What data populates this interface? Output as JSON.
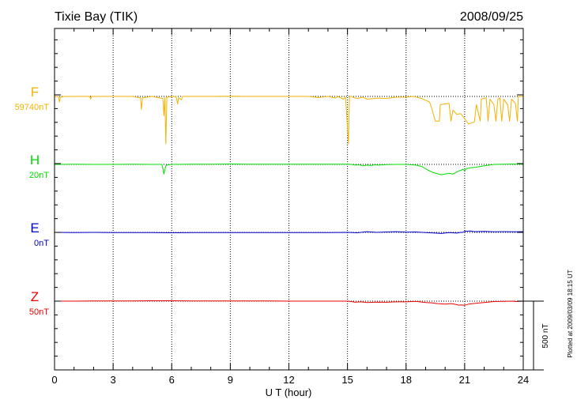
{
  "header": {
    "station": "Tixie Bay (TIK)",
    "date": "2008/09/25"
  },
  "footer": {
    "plotted_note": "Plotted at 2009/03/09 18:15 UT",
    "scale_label": "500 nT"
  },
  "chart_data": {
    "type": "line",
    "title": "Tixie Bay (TIK)",
    "xlabel": "U T (hour)",
    "ylabel": "",
    "xlim": [
      0,
      24
    ],
    "x_ticks": [
      0,
      3,
      6,
      9,
      12,
      15,
      18,
      21,
      24
    ],
    "x_tick_labels": [
      "0",
      "3",
      "6",
      "9",
      "12",
      "15",
      "18",
      "21",
      "24"
    ],
    "scale_bar_nT": 500,
    "grid": true,
    "series": [
      {
        "name": "F",
        "baseline_label": "59740nT",
        "baseline_nT": 59740,
        "color": "#f2b300",
        "points": [
          [
            0,
            0
          ],
          [
            0.2,
            0
          ],
          [
            0.25,
            -40
          ],
          [
            0.3,
            -5
          ],
          [
            0.5,
            0
          ],
          [
            1.0,
            0
          ],
          [
            1.8,
            0
          ],
          [
            1.85,
            -20
          ],
          [
            1.9,
            0
          ],
          [
            3.0,
            0
          ],
          [
            4.0,
            0
          ],
          [
            4.4,
            -10
          ],
          [
            4.45,
            -95
          ],
          [
            4.5,
            -10
          ],
          [
            5.0,
            0
          ],
          [
            5.55,
            -15
          ],
          [
            5.6,
            -140
          ],
          [
            5.65,
            -10
          ],
          [
            5.7,
            -345
          ],
          [
            5.75,
            -5
          ],
          [
            6.2,
            0
          ],
          [
            6.25,
            -15
          ],
          [
            6.3,
            -55
          ],
          [
            6.35,
            -10
          ],
          [
            6.5,
            -25
          ],
          [
            6.55,
            0
          ],
          [
            7.0,
            0
          ],
          [
            8.0,
            0
          ],
          [
            9.0,
            2
          ],
          [
            10.0,
            0
          ],
          [
            11.0,
            0
          ],
          [
            12.0,
            0
          ],
          [
            13.0,
            0
          ],
          [
            13.5,
            -8
          ],
          [
            14.0,
            0
          ],
          [
            14.4,
            -12
          ],
          [
            14.5,
            0
          ],
          [
            14.8,
            -20
          ],
          [
            14.9,
            -5
          ],
          [
            15.05,
            -345
          ],
          [
            15.1,
            0
          ],
          [
            15.2,
            0
          ],
          [
            15.35,
            -10
          ],
          [
            15.5,
            -15
          ],
          [
            15.8,
            -5
          ],
          [
            16.0,
            -20
          ],
          [
            16.3,
            -15
          ],
          [
            16.6,
            -12
          ],
          [
            17.0,
            -15
          ],
          [
            17.5,
            -5
          ],
          [
            18.0,
            -5
          ],
          [
            18.4,
            0
          ],
          [
            18.8,
            -15
          ],
          [
            19.2,
            -40
          ],
          [
            19.3,
            -80
          ],
          [
            19.5,
            -180
          ],
          [
            19.7,
            -180
          ],
          [
            19.75,
            -60
          ],
          [
            20.2,
            -50
          ],
          [
            20.3,
            -180
          ],
          [
            20.4,
            -100
          ],
          [
            20.6,
            -130
          ],
          [
            20.8,
            -125
          ],
          [
            21.2,
            -200
          ],
          [
            21.5,
            -185
          ],
          [
            21.6,
            -60
          ],
          [
            21.8,
            -180
          ],
          [
            21.85,
            -20
          ],
          [
            22.1,
            -10
          ],
          [
            22.2,
            -180
          ],
          [
            22.3,
            -20
          ],
          [
            22.5,
            -60
          ],
          [
            22.6,
            -180
          ],
          [
            22.7,
            -20
          ],
          [
            22.8,
            -10
          ],
          [
            22.9,
            -180
          ],
          [
            23.0,
            -20
          ],
          [
            23.2,
            -60
          ],
          [
            23.3,
            -180
          ],
          [
            23.4,
            -20
          ],
          [
            23.6,
            -50
          ],
          [
            23.7,
            -180
          ],
          [
            23.75,
            0
          ],
          [
            24.0,
            0
          ]
        ]
      },
      {
        "name": "H",
        "baseline_label": "20nT",
        "baseline_nT": 20,
        "color": "#00dd00",
        "points": [
          [
            0,
            0
          ],
          [
            1.0,
            1
          ],
          [
            2.0,
            0
          ],
          [
            3.0,
            0
          ],
          [
            4.0,
            1
          ],
          [
            5.0,
            0
          ],
          [
            5.5,
            0
          ],
          [
            5.6,
            -70
          ],
          [
            5.7,
            -10
          ],
          [
            5.8,
            -3
          ],
          [
            6.0,
            0
          ],
          [
            7.0,
            1
          ],
          [
            8.0,
            2
          ],
          [
            9.0,
            3
          ],
          [
            10.0,
            2
          ],
          [
            11.0,
            2
          ],
          [
            12.0,
            2
          ],
          [
            13.0,
            2
          ],
          [
            14.0,
            2
          ],
          [
            15.0,
            1
          ],
          [
            15.2,
            0
          ],
          [
            15.4,
            -5
          ],
          [
            15.6,
            -3
          ],
          [
            15.8,
            -10
          ],
          [
            16.0,
            -5
          ],
          [
            16.2,
            -8
          ],
          [
            16.4,
            -3
          ],
          [
            16.6,
            -5
          ],
          [
            17.0,
            -2
          ],
          [
            17.5,
            0
          ],
          [
            18.0,
            0
          ],
          [
            18.5,
            -5
          ],
          [
            18.8,
            -15
          ],
          [
            19.1,
            -40
          ],
          [
            19.4,
            -60
          ],
          [
            19.8,
            -75
          ],
          [
            20.2,
            -65
          ],
          [
            20.4,
            -70
          ],
          [
            20.6,
            -55
          ],
          [
            20.75,
            -45
          ],
          [
            20.8,
            -45
          ],
          [
            20.9,
            -35
          ],
          [
            21.0,
            -45
          ],
          [
            21.1,
            -30
          ],
          [
            21.3,
            -25
          ],
          [
            21.6,
            -20
          ],
          [
            22.0,
            -10
          ],
          [
            22.5,
            0
          ],
          [
            23.0,
            2
          ],
          [
            23.5,
            3
          ],
          [
            24.0,
            2
          ]
        ]
      },
      {
        "name": "E",
        "baseline_label": "0nT",
        "baseline_nT": 0,
        "color": "#0000cc",
        "points": [
          [
            0,
            0
          ],
          [
            1.0,
            -1
          ],
          [
            2.0,
            0
          ],
          [
            3.0,
            -1
          ],
          [
            4.0,
            -2
          ],
          [
            5.0,
            -2
          ],
          [
            6.0,
            -3
          ],
          [
            7.0,
            -2
          ],
          [
            8.0,
            -2
          ],
          [
            9.0,
            -2
          ],
          [
            10.0,
            -2
          ],
          [
            11.0,
            -2
          ],
          [
            12.0,
            -2
          ],
          [
            13.0,
            -2
          ],
          [
            14.0,
            -1
          ],
          [
            15.0,
            0
          ],
          [
            15.5,
            -3
          ],
          [
            16.0,
            5
          ],
          [
            16.5,
            0
          ],
          [
            17.0,
            3
          ],
          [
            17.5,
            5
          ],
          [
            18.0,
            2
          ],
          [
            18.5,
            3
          ],
          [
            19.0,
            -2
          ],
          [
            19.5,
            -5
          ],
          [
            19.8,
            -8
          ],
          [
            20.2,
            -2
          ],
          [
            20.6,
            -5
          ],
          [
            20.8,
            0
          ],
          [
            20.9,
            0
          ],
          [
            21.0,
            8
          ],
          [
            21.3,
            10
          ],
          [
            21.5,
            5
          ],
          [
            22.0,
            7
          ],
          [
            22.5,
            4
          ],
          [
            23.0,
            5
          ],
          [
            23.5,
            4
          ],
          [
            24.0,
            5
          ]
        ]
      },
      {
        "name": "Z",
        "baseline_label": "50nT",
        "baseline_nT": 50,
        "color": "#ee0000",
        "points": [
          [
            0,
            0
          ],
          [
            1.0,
            0
          ],
          [
            2.0,
            1
          ],
          [
            3.0,
            1
          ],
          [
            4.0,
            2
          ],
          [
            5.0,
            3
          ],
          [
            6.0,
            3
          ],
          [
            7.0,
            2
          ],
          [
            8.0,
            1
          ],
          [
            9.0,
            1
          ],
          [
            10.0,
            1
          ],
          [
            11.0,
            1
          ],
          [
            12.0,
            0
          ],
          [
            13.0,
            0
          ],
          [
            14.0,
            0
          ],
          [
            15.0,
            0
          ],
          [
            15.2,
            -3
          ],
          [
            15.4,
            -8
          ],
          [
            15.7,
            -5
          ],
          [
            16.0,
            -10
          ],
          [
            16.5,
            -7
          ],
          [
            17.0,
            -8
          ],
          [
            17.5,
            -5
          ],
          [
            18.0,
            -5
          ],
          [
            18.5,
            -2
          ],
          [
            19.0,
            -10
          ],
          [
            19.3,
            -12
          ],
          [
            19.6,
            -18
          ],
          [
            20.0,
            -22
          ],
          [
            20.3,
            -18
          ],
          [
            20.6,
            -25
          ],
          [
            20.7,
            -30
          ],
          [
            20.75,
            -28
          ],
          [
            20.8,
            -28
          ],
          [
            21.0,
            -30
          ],
          [
            21.2,
            -22
          ],
          [
            21.6,
            -15
          ],
          [
            22.0,
            -10
          ],
          [
            22.5,
            -3
          ],
          [
            23.0,
            -1
          ],
          [
            23.5,
            0
          ],
          [
            23.6,
            -3
          ],
          [
            24.0,
            0
          ]
        ]
      }
    ]
  }
}
